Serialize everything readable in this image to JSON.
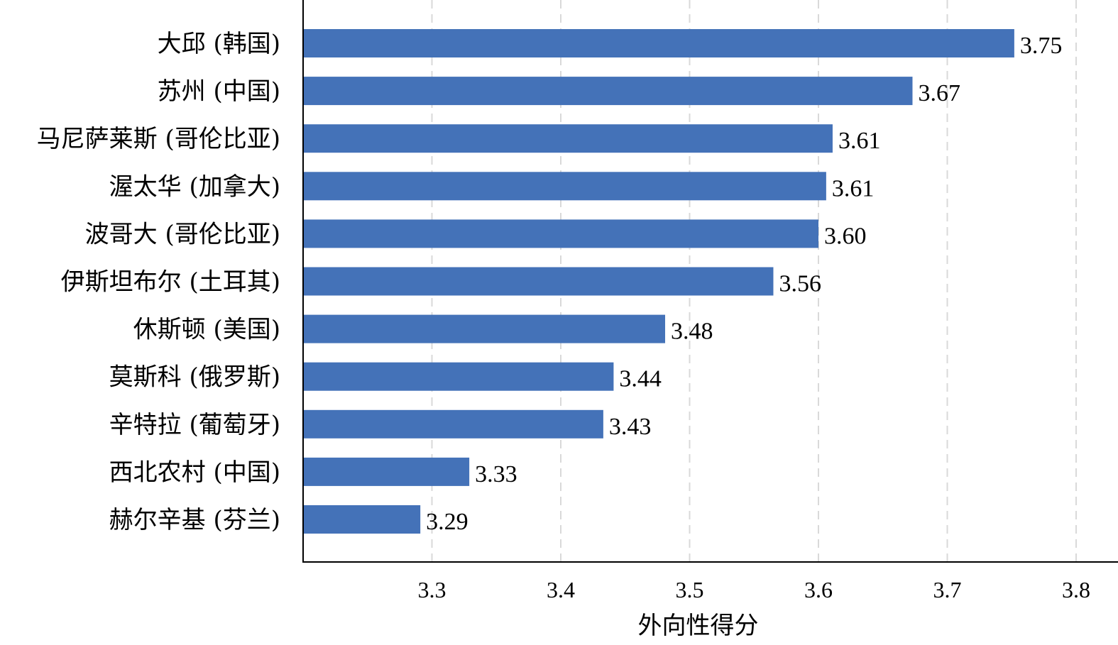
{
  "chart_data": {
    "type": "bar",
    "orientation": "horizontal",
    "categories": [
      "大邱 (韩国)",
      "苏州 (中国)",
      "马尼萨莱斯 (哥伦比亚)",
      "渥太华 (加拿大)",
      "波哥大 (哥伦比亚)",
      "伊斯坦布尔 (土耳其)",
      "休斯顿 (美国)",
      "莫斯科 (俄罗斯)",
      "辛特拉 (葡萄牙)",
      "西北农村 (中国)",
      "赫尔辛基 (芬兰)"
    ],
    "values": [
      3.752,
      3.673,
      3.611,
      3.606,
      3.6,
      3.565,
      3.481,
      3.441,
      3.433,
      3.329,
      3.291
    ],
    "data_labels": [
      "3.75",
      "3.67",
      "3.61",
      "3.61",
      "3.60",
      "3.56",
      "3.48",
      "3.44",
      "3.43",
      "3.33",
      "3.29"
    ],
    "xlabel": "外向性得分",
    "ylabel": "",
    "xlim": [
      3.2,
      3.8
    ],
    "xticks": [
      3.3,
      3.4,
      3.5,
      3.6,
      3.7,
      3.8
    ],
    "xtick_labels": [
      "3.3",
      "3.4",
      "3.5",
      "3.6",
      "3.7",
      "3.8"
    ],
    "grid": "vertical dashed",
    "bar_color": "#4472b8",
    "legend": "none"
  }
}
